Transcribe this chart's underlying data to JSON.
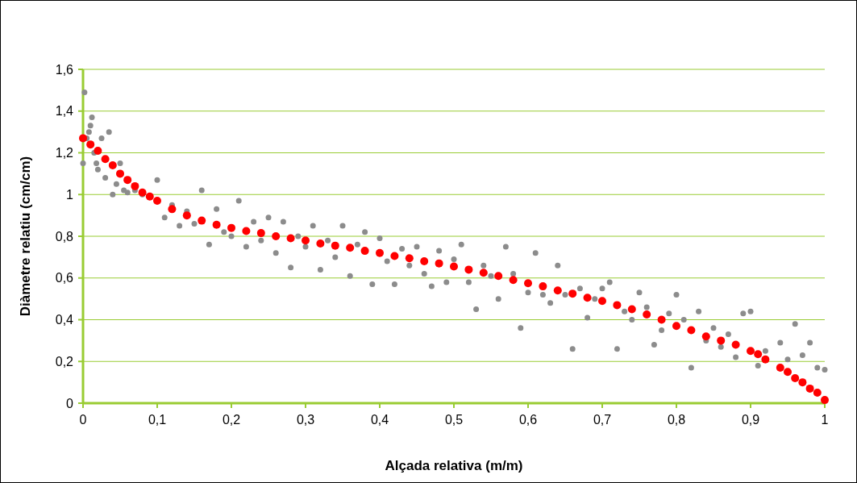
{
  "chart_data": {
    "type": "scatter",
    "xlabel": "Alçada relativa (m/m)",
    "ylabel": "Diàmetre relatiu (cm/cm)",
    "xlim": [
      0,
      1
    ],
    "ylim": [
      0,
      1.6
    ],
    "xticks": [
      0,
      {
        "value": 0.1,
        "label": "0,1"
      },
      {
        "value": 0.2,
        "label": "0,2"
      },
      {
        "value": 0.3,
        "label": "0,3"
      },
      {
        "value": 0.4,
        "label": "0,4"
      },
      {
        "value": 0.5,
        "label": "0,5"
      },
      {
        "value": 0.6,
        "label": "0,6"
      },
      {
        "value": 0.7,
        "label": "0,7"
      },
      {
        "value": 0.8,
        "label": "0,8"
      },
      {
        "value": 0.9,
        "label": "0,9"
      },
      1
    ],
    "yticks": [
      0,
      {
        "value": 0.2,
        "label": "0,2"
      },
      {
        "value": 0.4,
        "label": "0,4"
      },
      {
        "value": 0.6,
        "label": "0,6"
      },
      {
        "value": 0.8,
        "label": "0,8"
      },
      1,
      {
        "value": 1.2,
        "label": "1,2"
      },
      {
        "value": 1.4,
        "label": "1,4"
      },
      {
        "value": 1.6,
        "label": "1,6"
      }
    ],
    "grid": "y",
    "marker": "circle",
    "series": [
      {
        "color": "#8c8c8c",
        "x": [
          0,
          0.002,
          0.005,
          0.008,
          0.01,
          0.012,
          0.015,
          0.018,
          0.02,
          0.025,
          0.03,
          0.035,
          0.04,
          0.045,
          0.05,
          0.055,
          0.06,
          0.07,
          0.08,
          0.1,
          0.11,
          0.12,
          0.13,
          0.14,
          0.15,
          0.16,
          0.17,
          0.18,
          0.19,
          0.2,
          0.21,
          0.22,
          0.23,
          0.24,
          0.25,
          0.26,
          0.27,
          0.28,
          0.29,
          0.3,
          0.31,
          0.32,
          0.33,
          0.34,
          0.35,
          0.36,
          0.37,
          0.38,
          0.39,
          0.4,
          0.41,
          0.42,
          0.43,
          0.44,
          0.45,
          0.46,
          0.47,
          0.48,
          0.49,
          0.5,
          0.51,
          0.52,
          0.53,
          0.54,
          0.55,
          0.56,
          0.57,
          0.58,
          0.59,
          0.6,
          0.61,
          0.62,
          0.63,
          0.64,
          0.65,
          0.66,
          0.67,
          0.68,
          0.69,
          0.7,
          0.71,
          0.72,
          0.73,
          0.74,
          0.75,
          0.76,
          0.77,
          0.78,
          0.79,
          0.8,
          0.81,
          0.82,
          0.83,
          0.84,
          0.85,
          0.86,
          0.87,
          0.88,
          0.89,
          0.9,
          0.91,
          0.92,
          0.94,
          0.95,
          0.96,
          0.97,
          0.98,
          0.99,
          1
        ],
        "values": [
          1.15,
          1.49,
          1.27,
          1.3,
          1.33,
          1.37,
          1.2,
          1.15,
          1.12,
          1.27,
          1.08,
          1.3,
          1.0,
          1.05,
          1.15,
          1.02,
          1.01,
          1.02,
          1.0,
          1.07,
          0.89,
          0.95,
          0.85,
          0.92,
          0.86,
          1.02,
          0.76,
          0.93,
          0.82,
          0.8,
          0.97,
          0.75,
          0.87,
          0.78,
          0.89,
          0.72,
          0.87,
          0.65,
          0.8,
          0.75,
          0.85,
          0.64,
          0.78,
          0.7,
          0.85,
          0.61,
          0.76,
          0.82,
          0.57,
          0.79,
          0.68,
          0.57,
          0.74,
          0.66,
          0.75,
          0.62,
          0.56,
          0.73,
          0.58,
          0.69,
          0.76,
          0.58,
          0.45,
          0.66,
          0.61,
          0.5,
          0.75,
          0.62,
          0.36,
          0.53,
          0.72,
          0.52,
          0.48,
          0.66,
          0.52,
          0.26,
          0.55,
          0.41,
          0.5,
          0.55,
          0.58,
          0.26,
          0.44,
          0.4,
          0.53,
          0.46,
          0.28,
          0.35,
          0.43,
          0.52,
          0.4,
          0.17,
          0.44,
          0.3,
          0.36,
          0.27,
          0.33,
          0.22,
          0.43,
          0.44,
          0.18,
          0.25,
          0.29,
          0.21,
          0.38,
          0.23,
          0.29,
          0.17,
          0.16
        ]
      },
      {
        "color": "#ff0000",
        "x": [
          0,
          0.01,
          0.02,
          0.03,
          0.04,
          0.05,
          0.06,
          0.07,
          0.08,
          0.09,
          0.1,
          0.12,
          0.14,
          0.16,
          0.18,
          0.2,
          0.22,
          0.24,
          0.26,
          0.28,
          0.3,
          0.32,
          0.34,
          0.36,
          0.38,
          0.4,
          0.42,
          0.44,
          0.46,
          0.48,
          0.5,
          0.52,
          0.54,
          0.56,
          0.58,
          0.6,
          0.62,
          0.64,
          0.66,
          0.68,
          0.7,
          0.72,
          0.74,
          0.76,
          0.78,
          0.8,
          0.82,
          0.84,
          0.86,
          0.88,
          0.9,
          0.91,
          0.92,
          0.94,
          0.95,
          0.96,
          0.97,
          0.98,
          0.99,
          1
        ],
        "values": [
          1.27,
          1.24,
          1.21,
          1.17,
          1.14,
          1.1,
          1.07,
          1.04,
          1.01,
          0.99,
          0.97,
          0.93,
          0.9,
          0.875,
          0.855,
          0.84,
          0.825,
          0.815,
          0.8,
          0.79,
          0.78,
          0.765,
          0.755,
          0.745,
          0.73,
          0.72,
          0.705,
          0.695,
          0.68,
          0.67,
          0.655,
          0.64,
          0.625,
          0.61,
          0.59,
          0.575,
          0.56,
          0.54,
          0.525,
          0.505,
          0.49,
          0.47,
          0.45,
          0.425,
          0.4,
          0.37,
          0.35,
          0.32,
          0.3,
          0.28,
          0.25,
          0.235,
          0.21,
          0.17,
          0.15,
          0.12,
          0.1,
          0.07,
          0.05,
          0.015
        ]
      }
    ]
  }
}
